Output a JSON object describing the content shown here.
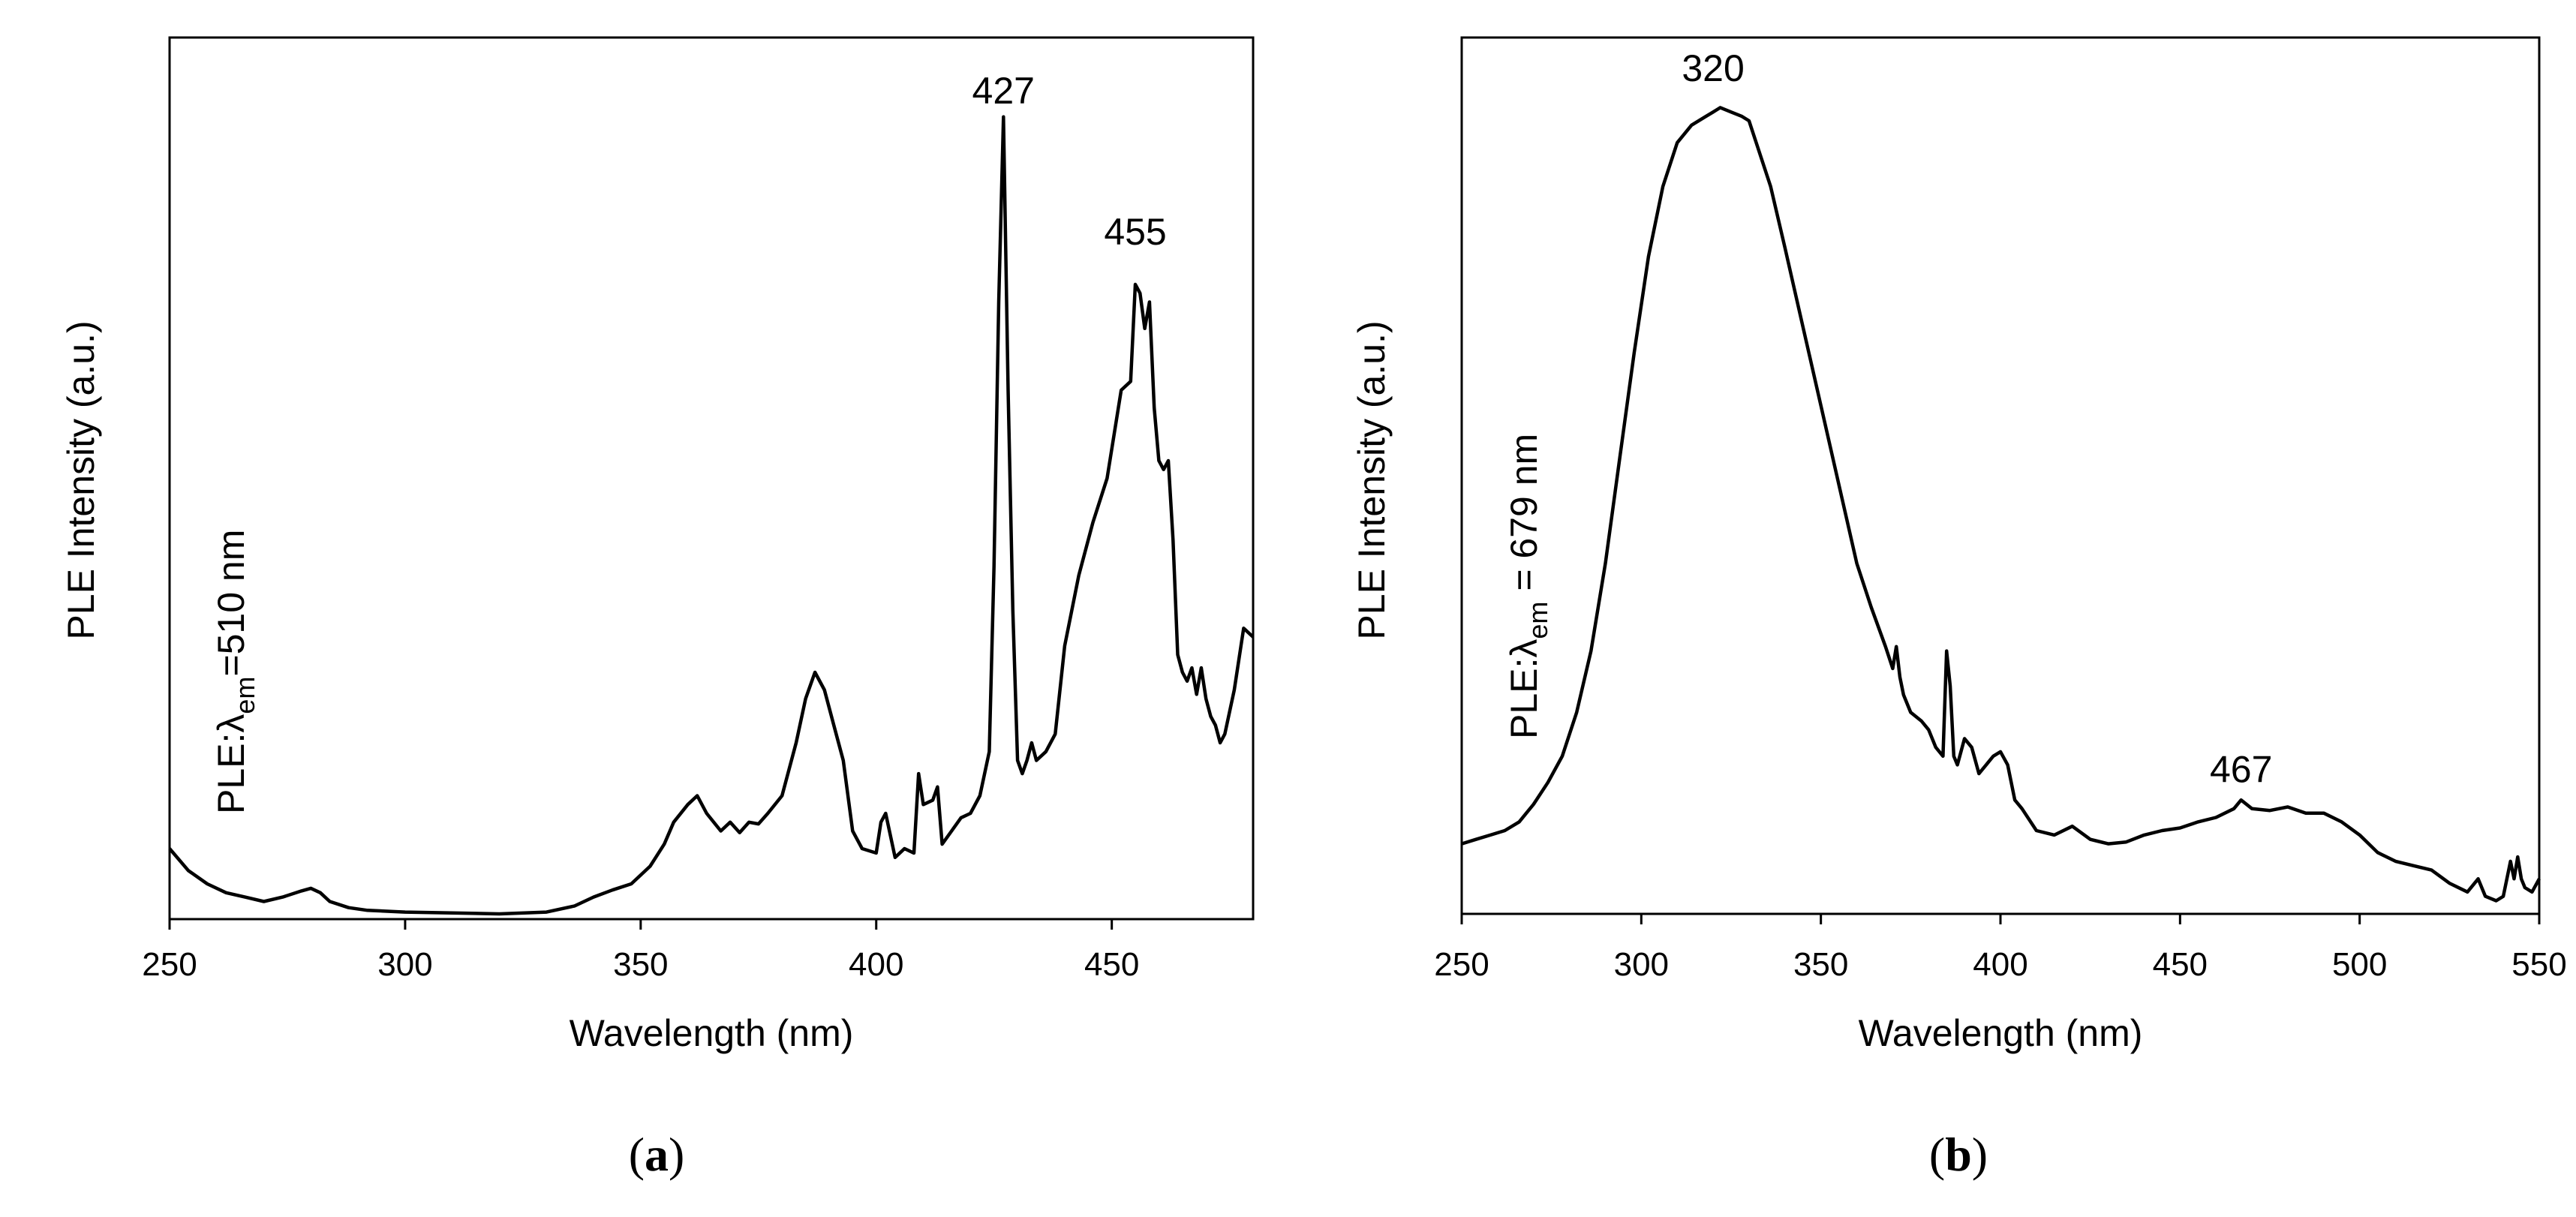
{
  "chart_data": [
    {
      "type": "line",
      "panel_label": "a",
      "title": "",
      "xlabel": "Wavelength (nm)",
      "ylabel": "PLE Intensity (a.u.)",
      "annotation": {
        "prefix": "PLE:",
        "lambda": "λ",
        "subscript": "em",
        "suffix": "=510 nm"
      },
      "xlim": [
        250,
        480
      ],
      "ylim": [
        0,
        100
      ],
      "xticks": [
        250,
        300,
        350,
        400,
        450
      ],
      "yticks": [],
      "grid": false,
      "legend": "none",
      "peak_labels": [
        {
          "text": "427",
          "x": 427,
          "y": 91.5
        },
        {
          "text": "455",
          "x": 455,
          "y": 75.5
        }
      ],
      "series": [
        {
          "name": "PLE λem=510 nm",
          "x": [
            250,
            254,
            258,
            262,
            266,
            270,
            274,
            278,
            280,
            282,
            284,
            288,
            292,
            300,
            310,
            320,
            330,
            336,
            340,
            344,
            348,
            352,
            355,
            357,
            360,
            362,
            364,
            367,
            369,
            371,
            373,
            375,
            377,
            380,
            383,
            385,
            387,
            389,
            391,
            393,
            395,
            397,
            400,
            401,
            402,
            404,
            406,
            408,
            409,
            410,
            412,
            413,
            414,
            416,
            418,
            420,
            422,
            424,
            425,
            426,
            427,
            428,
            429,
            430,
            431,
            432,
            433,
            434,
            436,
            438,
            440,
            443,
            446,
            449,
            452,
            454,
            455,
            456,
            457,
            458,
            459,
            460,
            461,
            462,
            463,
            464,
            465,
            466,
            467,
            468,
            469,
            470,
            471,
            472,
            473,
            474,
            476,
            478,
            480
          ],
          "values": [
            8.0,
            5.5,
            4.0,
            3.0,
            2.5,
            2.0,
            2.5,
            3.2,
            3.5,
            3.0,
            2.0,
            1.3,
            1.0,
            0.8,
            0.7,
            0.6,
            0.8,
            1.5,
            2.5,
            3.3,
            4.0,
            6.0,
            8.5,
            11.0,
            13.0,
            14.0,
            12.0,
            10.0,
            11.0,
            9.8,
            11.0,
            10.8,
            12.0,
            14.0,
            20.0,
            25.0,
            28.0,
            26.0,
            22.0,
            18.0,
            10.0,
            8.0,
            7.5,
            11.0,
            12.0,
            7.0,
            8.0,
            7.5,
            16.5,
            13.0,
            13.5,
            15.0,
            8.5,
            10.0,
            11.5,
            12.0,
            14.0,
            19.0,
            40.0,
            70.0,
            91.0,
            60.0,
            35.0,
            18.0,
            16.5,
            18.0,
            20.0,
            18.0,
            19.0,
            21.0,
            31.0,
            39.0,
            45.0,
            50.0,
            60.0,
            61.0,
            72.0,
            71.0,
            67.0,
            70.0,
            58.0,
            52.0,
            51.0,
            52.0,
            43.0,
            30.0,
            28.0,
            27.0,
            28.5,
            25.5,
            28.5,
            25.0,
            23.0,
            22.0,
            20.0,
            21.0,
            26.0,
            33.0,
            32.0
          ]
        }
      ]
    },
    {
      "type": "line",
      "panel_label": "b",
      "title": "",
      "xlabel": "Wavelength (nm)",
      "ylabel": "PLE Intensity (a.u.)",
      "annotation": {
        "prefix": "PLE:",
        "lambda": "λ",
        "subscript": "em",
        "suffix": " = 679 nm"
      },
      "xlim": [
        250,
        550
      ],
      "ylim": [
        0,
        100
      ],
      "xticks": [
        250,
        300,
        350,
        400,
        450,
        500,
        550
      ],
      "yticks": [],
      "grid": false,
      "legend": "none",
      "peak_labels": [
        {
          "text": "320",
          "x": 320,
          "y": 94.0
        },
        {
          "text": "467",
          "x": 467,
          "y": 14.0
        }
      ],
      "series": [
        {
          "name": "PLE λem=679 nm",
          "x": [
            250,
            254,
            258,
            262,
            266,
            270,
            274,
            278,
            282,
            286,
            290,
            294,
            298,
            302,
            306,
            310,
            314,
            318,
            320,
            322,
            325,
            328,
            330,
            332,
            336,
            340,
            345,
            350,
            355,
            360,
            364,
            368,
            370,
            371,
            372,
            373,
            375,
            378,
            380,
            382,
            384,
            385,
            386,
            387,
            388,
            390,
            392,
            393,
            394,
            396,
            398,
            400,
            402,
            404,
            406,
            410,
            415,
            420,
            425,
            430,
            435,
            440,
            445,
            450,
            455,
            460,
            465,
            467,
            470,
            475,
            480,
            485,
            490,
            495,
            500,
            505,
            510,
            515,
            520,
            525,
            530,
            533,
            535,
            538,
            540,
            542,
            543,
            544,
            545,
            546,
            548,
            550
          ],
          "values": [
            8.0,
            8.5,
            9.0,
            9.5,
            10.5,
            12.5,
            15.0,
            18.0,
            23.0,
            30.0,
            40.0,
            52.0,
            64.0,
            75.0,
            83.0,
            88.0,
            90.0,
            91.0,
            91.5,
            92.0,
            91.5,
            91.0,
            90.5,
            88.0,
            83.0,
            76.0,
            67.0,
            58.0,
            49.0,
            40.0,
            35.0,
            30.5,
            28.0,
            30.5,
            27.0,
            25.0,
            23.0,
            22.0,
            21.0,
            19.0,
            18.0,
            30.0,
            26.0,
            18.0,
            17.0,
            20.0,
            19.0,
            17.5,
            16.0,
            17.0,
            18.0,
            18.5,
            17.0,
            13.0,
            12.0,
            9.5,
            9.0,
            10.0,
            8.5,
            8.0,
            8.2,
            9.0,
            9.5,
            9.8,
            10.5,
            11.0,
            12.0,
            13.0,
            12.0,
            11.8,
            12.2,
            11.5,
            11.5,
            10.5,
            9.0,
            7.0,
            6.0,
            5.5,
            5.0,
            3.5,
            2.5,
            4.0,
            2.0,
            1.5,
            2.0,
            6.0,
            4.0,
            6.5,
            4.0,
            3.0,
            2.5,
            4.0
          ]
        }
      ]
    }
  ]
}
